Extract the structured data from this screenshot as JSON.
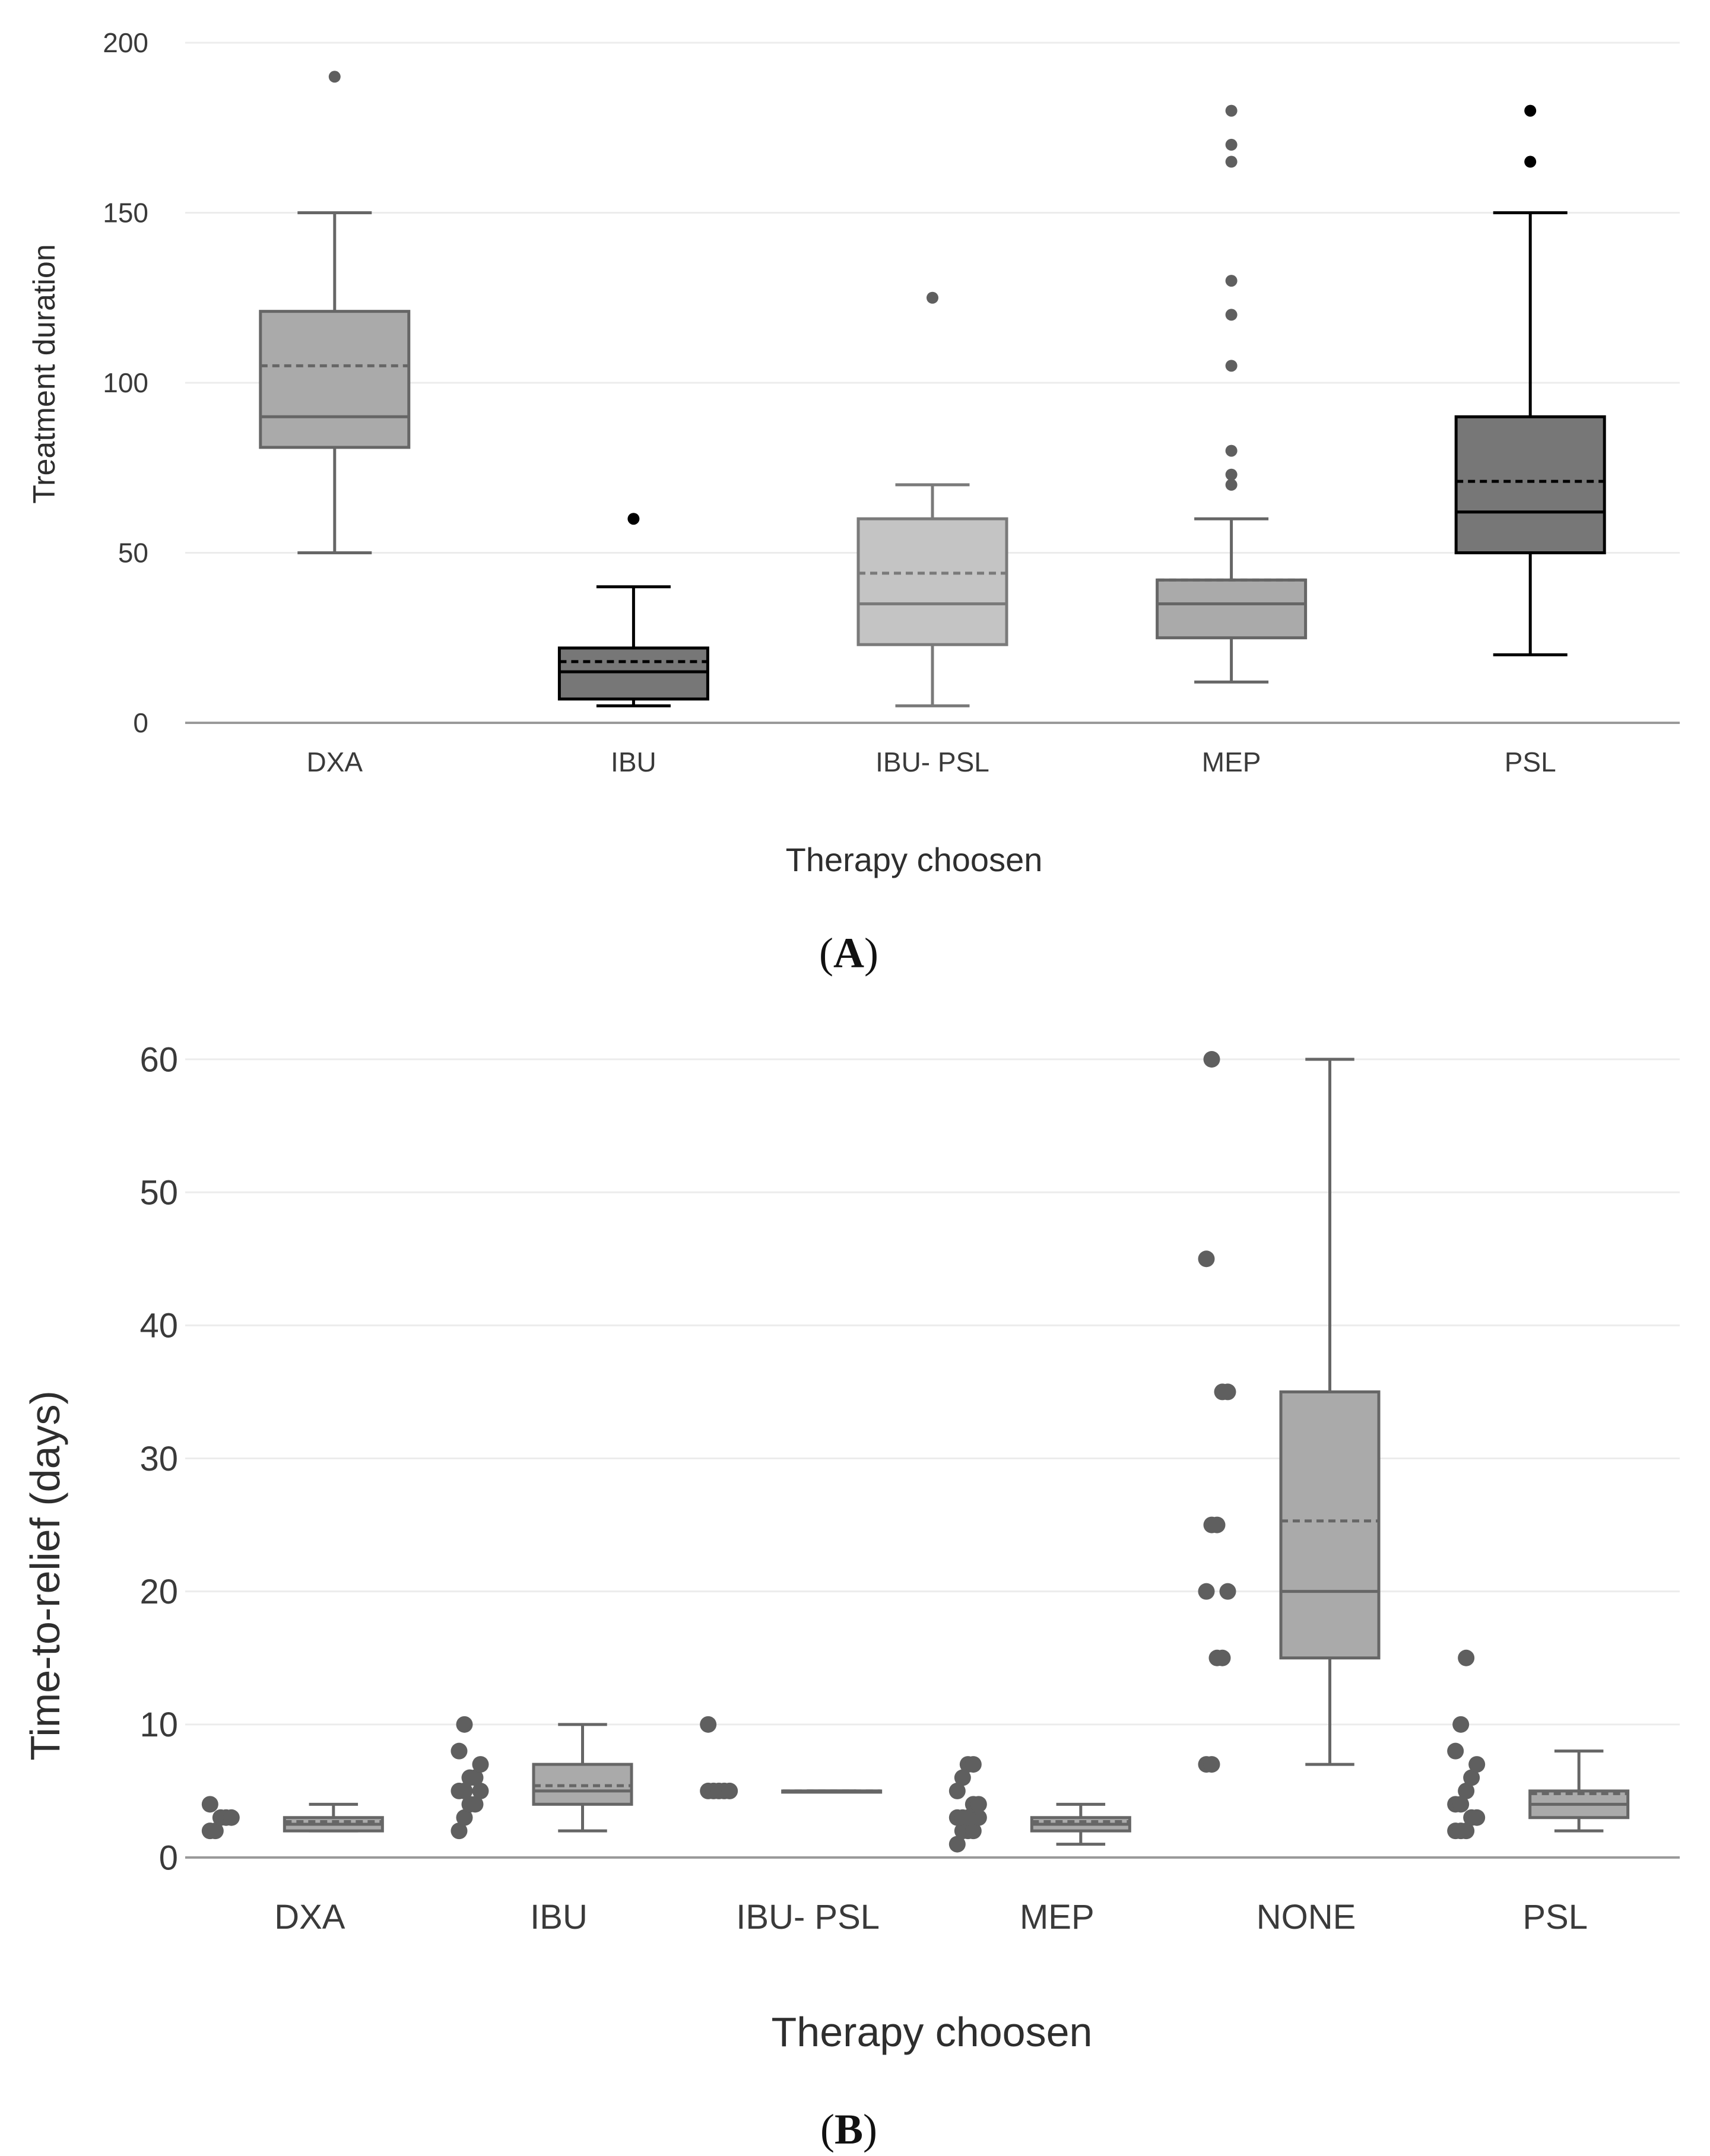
{
  "figure": {
    "panel_a_label": "A",
    "panel_b_label": "B"
  },
  "chart_data": [
    {
      "type": "box",
      "panel": "A",
      "title": "",
      "xlabel": "Therapy choosen",
      "ylabel": "Treatment duration",
      "ylim": [
        0,
        200
      ],
      "yticks": [
        0,
        50,
        100,
        150,
        200
      ],
      "grid": true,
      "mean_line": "dashed",
      "categories": [
        "DXA",
        "IBU",
        "IBU- PSL",
        "MEP",
        "PSL"
      ],
      "boxes": [
        {
          "category": "DXA",
          "whisker_low": 50,
          "q1": 81,
          "median": 90,
          "mean": 105,
          "q3": 121,
          "whisker_high": 150,
          "outliers": [
            190
          ],
          "fill": "#aaaaaa",
          "stroke": "#666666"
        },
        {
          "category": "IBU",
          "whisker_low": 5,
          "q1": 7,
          "median": 15,
          "mean": 18,
          "q3": 22,
          "whisker_high": 40,
          "outliers": [
            60
          ],
          "fill": "#777777",
          "stroke": "#000000"
        },
        {
          "category": "IBU- PSL",
          "whisker_low": 5,
          "q1": 23,
          "median": 35,
          "mean": 44,
          "q3": 60,
          "whisker_high": 70,
          "outliers": [
            125
          ],
          "fill": "#c4c4c4",
          "stroke": "#7a7a7a"
        },
        {
          "category": "MEP",
          "whisker_low": 12,
          "q1": 25,
          "median": 35,
          "mean": 42,
          "q3": 42,
          "whisker_high": 60,
          "outliers": [
            70,
            73,
            80,
            105,
            120,
            130,
            165,
            170,
            180
          ],
          "fill": "#aaaaaa",
          "stroke": "#666666"
        },
        {
          "category": "PSL",
          "whisker_low": 20,
          "q1": 50,
          "median": 62,
          "mean": 71,
          "q3": 90,
          "whisker_high": 150,
          "outliers": [
            165,
            180
          ],
          "fill": "#777777",
          "stroke": "#000000"
        }
      ]
    },
    {
      "type": "box",
      "panel": "B",
      "title": "",
      "xlabel": "Therapy choosen",
      "ylabel": "Time-to-relief (days)",
      "ylim": [
        0,
        60
      ],
      "yticks": [
        0,
        10,
        20,
        30,
        40,
        50,
        60
      ],
      "grid": true,
      "mean_line": "dashed",
      "categories": [
        "DXA",
        "IBU",
        "IBU- PSL",
        "MEP",
        "NONE",
        "PSL"
      ],
      "boxes": [
        {
          "category": "DXA",
          "whisker_low": 2,
          "q1": 2,
          "median": 2.5,
          "mean": 2.7,
          "q3": 3,
          "whisker_high": 4,
          "points": [
            2,
            2,
            3,
            3,
            3,
            4
          ],
          "fill": "#aaaaaa",
          "stroke": "#666666"
        },
        {
          "category": "IBU",
          "whisker_low": 2,
          "q1": 4,
          "median": 5,
          "mean": 5.4,
          "q3": 7,
          "whisker_high": 10,
          "points": [
            2,
            3,
            4,
            4,
            5,
            5,
            5,
            6,
            6,
            7,
            8,
            10
          ],
          "fill": "#aaaaaa",
          "stroke": "#666666"
        },
        {
          "category": "IBU- PSL",
          "whisker_low": 5,
          "q1": 5,
          "median": 5,
          "mean": 5,
          "q3": 5,
          "whisker_high": 5,
          "points": [
            5,
            5,
            5,
            5,
            5,
            10
          ],
          "fill": "#aaaaaa",
          "stroke": "#666666"
        },
        {
          "category": "MEP",
          "whisker_low": 1,
          "q1": 2,
          "median": 2.5,
          "mean": 2.7,
          "q3": 3,
          "whisker_high": 4,
          "points": [
            1,
            2,
            2,
            2,
            3,
            3,
            3,
            3,
            4,
            4,
            5,
            6,
            7,
            7
          ],
          "fill": "#aaaaaa",
          "stroke": "#666666"
        },
        {
          "category": "NONE",
          "whisker_low": 7,
          "q1": 15,
          "median": 20,
          "mean": 25.3,
          "q3": 35,
          "whisker_high": 60,
          "points": [
            7,
            7,
            15,
            15,
            20,
            20,
            25,
            25,
            35,
            35,
            45,
            60
          ],
          "fill": "#aaaaaa",
          "stroke": "#666666"
        },
        {
          "category": "PSL",
          "whisker_low": 2,
          "q1": 3,
          "median": 4,
          "mean": 4.8,
          "q3": 5,
          "whisker_high": 8,
          "points": [
            2,
            2,
            2,
            3,
            3,
            4,
            4,
            5,
            6,
            7,
            8,
            10,
            15
          ],
          "fill": "#aaaaaa",
          "stroke": "#666666"
        }
      ]
    }
  ]
}
